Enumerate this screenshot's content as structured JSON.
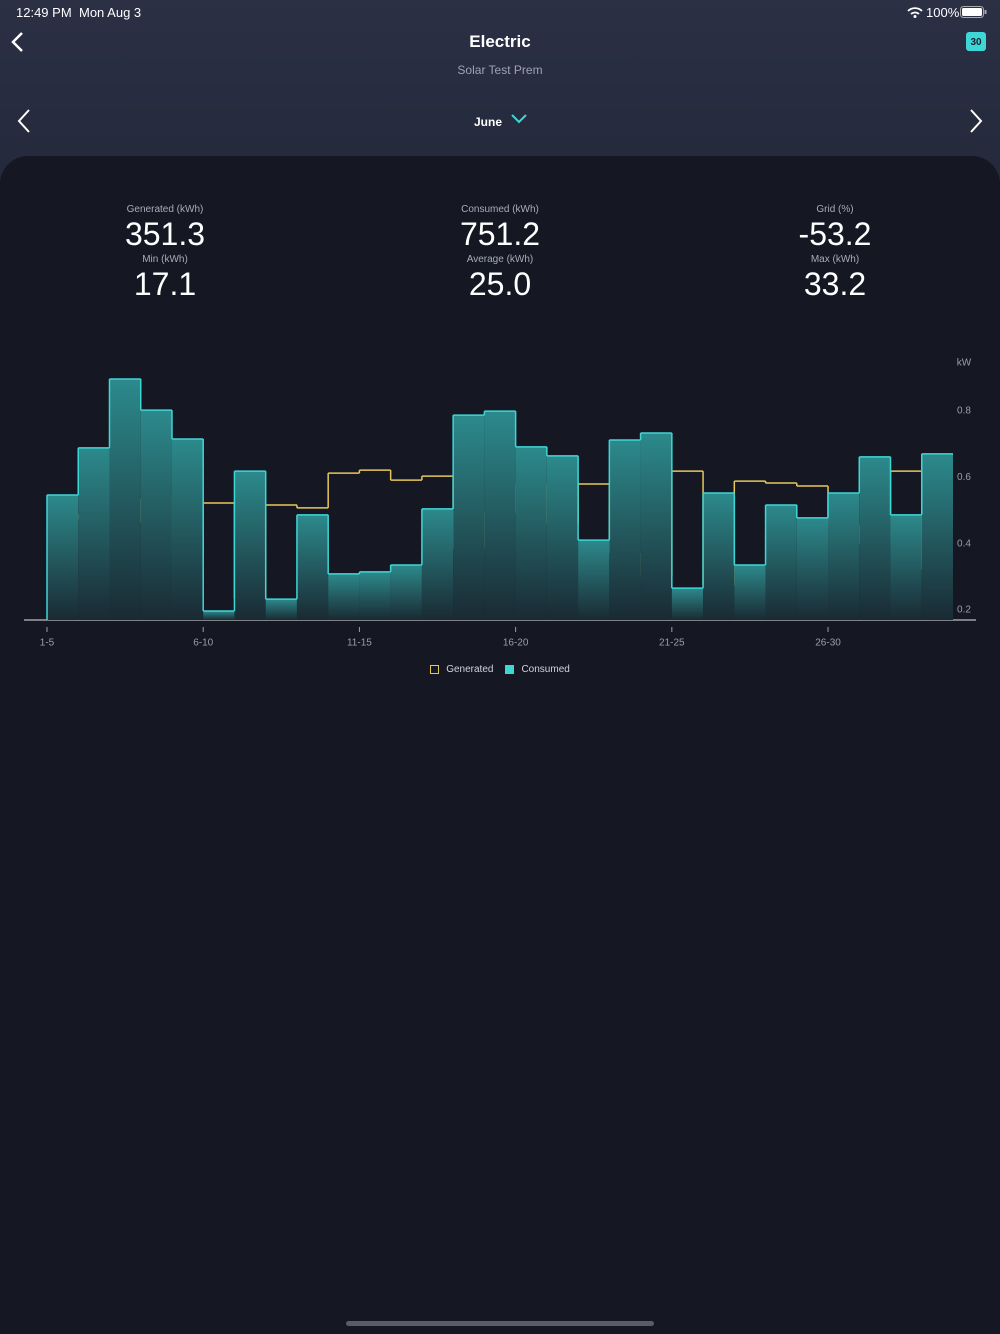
{
  "status_bar": {
    "time": "12:49 PM",
    "date": "Mon Aug 3",
    "battery": "100%"
  },
  "header": {
    "title": "Electric",
    "subtitle": "Solar Test Prem",
    "calendar_day": "30"
  },
  "month_selector": {
    "label": "June"
  },
  "stats": [
    {
      "label": "Generated (kWh)",
      "value": "351.3"
    },
    {
      "label": "Consumed (kWh)",
      "value": "751.2"
    },
    {
      "label": "Grid (%)",
      "value": "-53.2"
    },
    {
      "label": "Min (kWh)",
      "value": "17.1"
    },
    {
      "label": "Average (kWh)",
      "value": "25.0"
    },
    {
      "label": "Max (kWh)",
      "value": "33.2"
    }
  ],
  "chart_data": {
    "type": "step",
    "y_axis_label": "kW",
    "x": [
      1,
      2,
      3,
      4,
      5,
      6,
      7,
      8,
      9,
      10,
      11,
      12,
      13,
      14,
      15,
      16,
      17,
      18,
      19,
      20,
      21,
      22,
      23,
      24,
      25,
      26,
      27,
      28,
      29
    ],
    "xlim": [
      1,
      30
    ],
    "xticks": [
      {
        "value": 1,
        "label": "1-5"
      },
      {
        "value": 6,
        "label": "6-10"
      },
      {
        "value": 11,
        "label": "11-15"
      },
      {
        "value": 16,
        "label": "16-20"
      },
      {
        "value": 21,
        "label": "21-25"
      },
      {
        "value": 26,
        "label": "26-30"
      }
    ],
    "ylim": [
      0.17,
      0.93
    ],
    "yticks": [
      0.2,
      0.4,
      0.6,
      0.8
    ],
    "legend": "bottom",
    "series": [
      {
        "name": "Generated",
        "color": "#e6c75a",
        "values": [
          0.475,
          0.487,
          0.465,
          0.535,
          0.366,
          0.523,
          0.236,
          0.517,
          0.508,
          0.613,
          0.622,
          0.592,
          0.604,
          0.387,
          0.493,
          0.577,
          0.462,
          0.58,
          0.372,
          0.303,
          0.619,
          0.275,
          0.589,
          0.583,
          0.574,
          0.456,
          0.402,
          0.619,
          0.324
        ]
      },
      {
        "name": "Consumed",
        "color": "#3fd6d6",
        "values": [
          0.547,
          0.689,
          0.897,
          0.803,
          0.716,
          0.197,
          0.619,
          0.233,
          0.487,
          0.309,
          0.315,
          0.336,
          0.505,
          0.788,
          0.8,
          0.692,
          0.665,
          0.411,
          0.713,
          0.734,
          0.266,
          0.553,
          0.336,
          0.517,
          0.478,
          0.553,
          0.662,
          0.487,
          0.671
        ]
      }
    ]
  }
}
